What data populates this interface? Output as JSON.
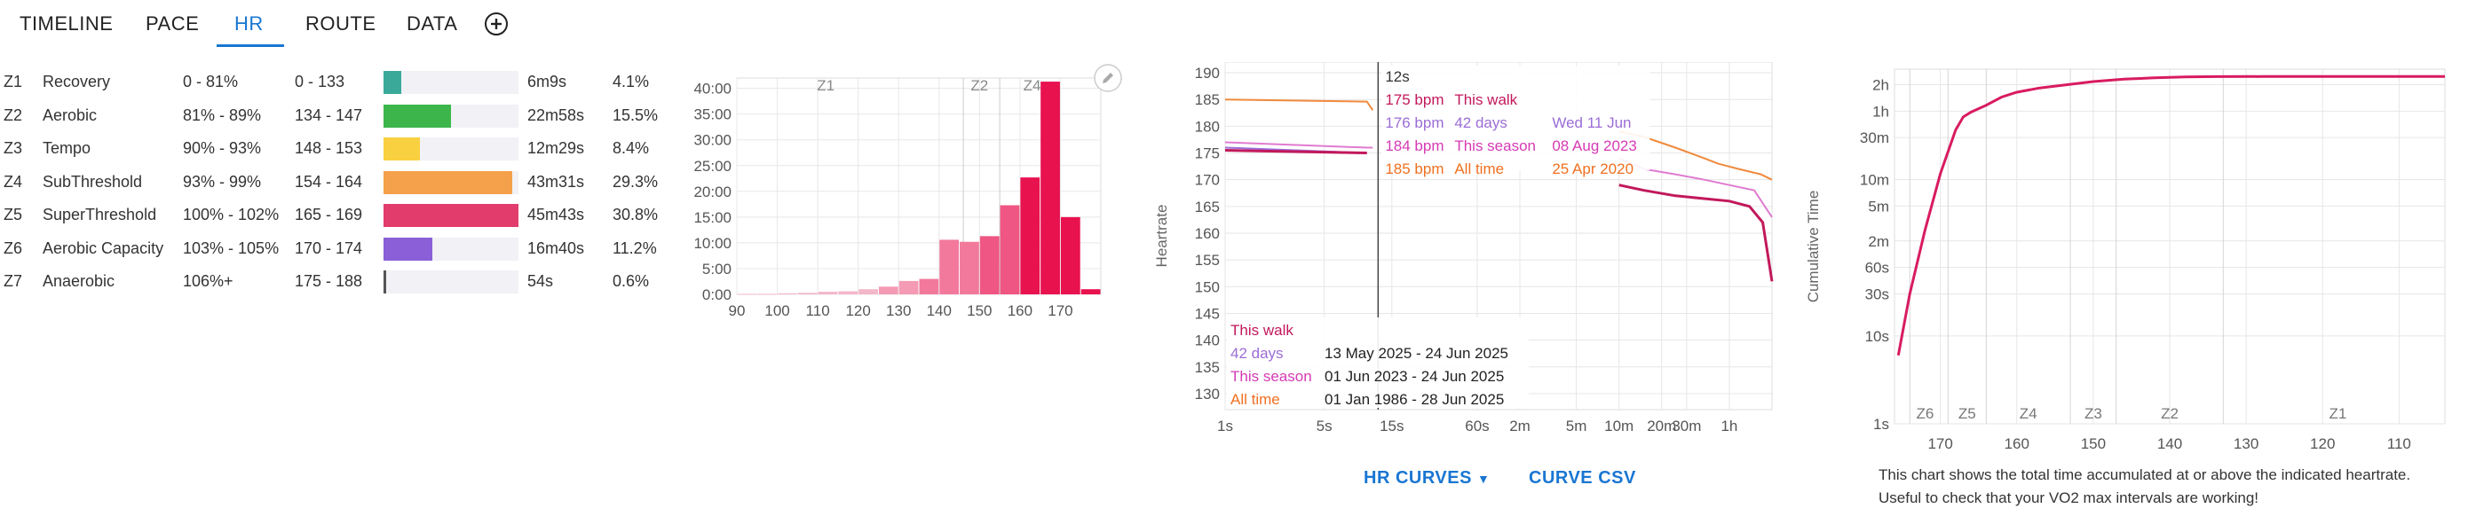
{
  "tabs": [
    {
      "label": "TIMELINE"
    },
    {
      "label": "PACE"
    },
    {
      "label": "HR"
    },
    {
      "label": "ROUTE"
    },
    {
      "label": "DATA"
    }
  ],
  "add_icon": "plus-circle-icon",
  "zones": [
    {
      "id": "Z1",
      "name": "Recovery",
      "pct": "0 - 81%",
      "bpm": "0 - 133",
      "time": "6m9s",
      "share": "4.1%",
      "fill": 4.1,
      "color": "#3aa99a"
    },
    {
      "id": "Z2",
      "name": "Aerobic",
      "pct": "81% - 89%",
      "bpm": "134 - 147",
      "time": "22m58s",
      "share": "15.5%",
      "fill": 15.5,
      "color": "#3cb54a"
    },
    {
      "id": "Z3",
      "name": "Tempo",
      "pct": "90% - 93%",
      "bpm": "148 - 153",
      "time": "12m29s",
      "share": "8.4%",
      "fill": 8.4,
      "color": "#f9d03f"
    },
    {
      "id": "Z4",
      "name": "SubThreshold",
      "pct": "93% - 99%",
      "bpm": "154 - 164",
      "time": "43m31s",
      "share": "29.3%",
      "fill": 29.3,
      "color": "#f5a04a"
    },
    {
      "id": "Z5",
      "name": "SuperThreshold",
      "pct": "100% - 102%",
      "bpm": "165 - 169",
      "time": "45m43s",
      "share": "30.8%",
      "fill": 30.8,
      "color": "#e13c6c"
    },
    {
      "id": "Z6",
      "name": "Aerobic Capacity",
      "pct": "103% - 105%",
      "bpm": "170 - 174",
      "time": "16m40s",
      "share": "11.2%",
      "fill": 11.2,
      "color": "#8a5fd8"
    },
    {
      "id": "Z7",
      "name": "Anaerobic",
      "pct": "106%+",
      "bpm": "175 - 188",
      "time": "54s",
      "share": "0.6%",
      "fill": 0.6,
      "color": "#555555"
    }
  ],
  "chart_data": [
    {
      "type": "bar",
      "title": "",
      "xlabel": "",
      "ylabel": "",
      "x_ticks": [
        "90",
        "100",
        "110",
        "120",
        "130",
        "140",
        "150",
        "160",
        "170"
      ],
      "y_ticks": [
        "0:00",
        "5:00",
        "10:00",
        "15:00",
        "20:00",
        "25:00",
        "30:00",
        "35:00",
        "40:00"
      ],
      "ylim": [
        0,
        42
      ],
      "zone_labels": [
        "Z1",
        "Z2",
        "Z4"
      ],
      "bins_bpm": [
        90,
        95,
        100,
        105,
        110,
        115,
        120,
        125,
        130,
        135,
        140,
        145,
        150,
        155,
        160,
        165,
        170,
        175
      ],
      "values_min": [
        0.1,
        0.1,
        0.2,
        0.3,
        0.5,
        0.6,
        1.0,
        1.5,
        2.6,
        3.0,
        10.6,
        10.2,
        11.3,
        17.3,
        22.7,
        41.3,
        15.0,
        1.0
      ],
      "grid": true
    },
    {
      "type": "line",
      "title": "",
      "ylabel": "Heartrate",
      "x_ticks": [
        "1s",
        "5s",
        "15s",
        "60s",
        "2m",
        "5m",
        "10m",
        "20m",
        "30m",
        "1h"
      ],
      "y_ticks": [
        "130",
        "135",
        "140",
        "145",
        "150",
        "155",
        "160",
        "165",
        "170",
        "175",
        "180",
        "185",
        "190"
      ],
      "ylim": [
        127,
        192
      ],
      "cursor_label": "12s",
      "series": [
        {
          "name": "This walk",
          "color": "#c2185b"
        },
        {
          "name": "42 days",
          "color": "#9b6dd6"
        },
        {
          "name": "This season",
          "color": "#e07bd0"
        },
        {
          "name": "All time",
          "color": "#f08a3c"
        }
      ],
      "tooltip": [
        {
          "bpm": "175 bpm",
          "label": "This walk",
          "date": "",
          "color": "#c2185b"
        },
        {
          "bpm": "176 bpm",
          "label": "42 days",
          "date": "Wed 11 Jun",
          "color": "#9b6dd6"
        },
        {
          "bpm": "184 bpm",
          "label": "This season",
          "date": "08 Aug 2023",
          "color": "#d63ab4"
        },
        {
          "bpm": "185 bpm",
          "label": "All time",
          "date": "25 Apr 2020",
          "color": "#f07020"
        }
      ],
      "legend": [
        {
          "label": "This walk",
          "range": "",
          "color": "#c2185b"
        },
        {
          "label": "42 days",
          "range": "13 May 2025 - 24 Jun 2025",
          "color": "#9b6dd6"
        },
        {
          "label": "This season",
          "range": "01 Jun 2023  -  24 Jun 2025",
          "color": "#d63ab4"
        },
        {
          "label": "All time",
          "range": "01 Jan 1986  -  28 Jun 2025",
          "color": "#f07020"
        }
      ],
      "grid": true
    },
    {
      "type": "line",
      "title": "",
      "ylabel": "Cumulative Time",
      "x_ticks": [
        "170",
        "160",
        "150",
        "140",
        "130",
        "120",
        "110"
      ],
      "y_ticks": [
        "1s",
        "10s",
        "30s",
        "60s",
        "2m",
        "5m",
        "10m",
        "30m",
        "1h",
        "2h"
      ],
      "zone_labels": [
        "Z6",
        "Z5",
        "Z4",
        "Z3",
        "Z2",
        "Z1"
      ],
      "series": [
        {
          "name": "",
          "color": "#d81b60"
        }
      ],
      "grid": true
    }
  ],
  "buttons": {
    "hr_curves": "HR CURVES",
    "curve_csv": "CURVE CSV"
  },
  "note": {
    "line1": "This chart shows the total time accumulated at or above the indicated heartrate.",
    "line2": "Useful to check that your VO2 max intervals are working!"
  },
  "edit_icon": "pencil-icon"
}
